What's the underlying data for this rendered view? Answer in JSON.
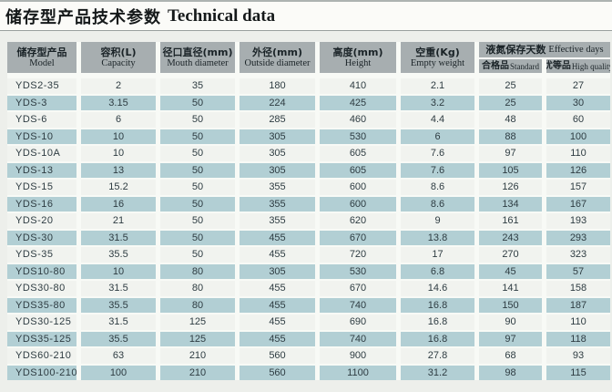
{
  "title": {
    "zh": "储存型产品技术参数",
    "en": "Technical data"
  },
  "table": {
    "columns": [
      {
        "zh": "储存型产品",
        "en": "Model"
      },
      {
        "zh": "容积(L)",
        "en": "Capacity"
      },
      {
        "zh": "径口直径(mm)",
        "en": "Mouth diameter"
      },
      {
        "zh": "外径(mm)",
        "en": "Outside diameter"
      },
      {
        "zh": "高度(mm)",
        "en": "Height"
      },
      {
        "zh": "空重(Kg)",
        "en": "Empty weight"
      }
    ],
    "group": {
      "zh": "液氮保存天数",
      "en": "Effective days",
      "sub": [
        {
          "zh": "合格品",
          "en": "Standard"
        },
        {
          "zh": "优等品",
          "en": "High quality"
        }
      ]
    },
    "rows": [
      [
        "YDS2-35",
        "2",
        "35",
        "180",
        "410",
        "2.1",
        "25",
        "27"
      ],
      [
        "YDS-3",
        "3.15",
        "50",
        "224",
        "425",
        "3.2",
        "25",
        "30"
      ],
      [
        "YDS-6",
        "6",
        "50",
        "285",
        "460",
        "4.4",
        "48",
        "60"
      ],
      [
        "YDS-10",
        "10",
        "50",
        "305",
        "530",
        "6",
        "88",
        "100"
      ],
      [
        "YDS-10A",
        "10",
        "50",
        "305",
        "605",
        "7.6",
        "97",
        "110"
      ],
      [
        "YDS-13",
        "13",
        "50",
        "305",
        "605",
        "7.6",
        "105",
        "126"
      ],
      [
        "YDS-15",
        "15.2",
        "50",
        "355",
        "600",
        "8.6",
        "126",
        "157"
      ],
      [
        "YDS-16",
        "16",
        "50",
        "355",
        "600",
        "8.6",
        "134",
        "167"
      ],
      [
        "YDS-20",
        "21",
        "50",
        "355",
        "620",
        "9",
        "161",
        "193"
      ],
      [
        "YDS-30",
        "31.5",
        "50",
        "455",
        "670",
        "13.8",
        "243",
        "293"
      ],
      [
        "YDS-35",
        "35.5",
        "50",
        "455",
        "720",
        "17",
        "270",
        "323"
      ],
      [
        "YDS10-80",
        "10",
        "80",
        "305",
        "530",
        "6.8",
        "45",
        "57"
      ],
      [
        "YDS30-80",
        "31.5",
        "80",
        "455",
        "670",
        "14.6",
        "141",
        "158"
      ],
      [
        "YDS35-80",
        "35.5",
        "80",
        "455",
        "740",
        "16.8",
        "150",
        "187"
      ],
      [
        "YDS30-125",
        "31.5",
        "125",
        "455",
        "690",
        "16.8",
        "90",
        "110"
      ],
      [
        "YDS35-125",
        "35.5",
        "125",
        "455",
        "740",
        "16.8",
        "97",
        "118"
      ],
      [
        "YDS60-210",
        "63",
        "210",
        "560",
        "900",
        "27.8",
        "68",
        "93"
      ],
      [
        "YDS100-210",
        "100",
        "210",
        "560",
        "1100",
        "31.2",
        "98",
        "115"
      ]
    ]
  },
  "colors": {
    "page_bg": "#edefeb",
    "title_bg": "#fbfbf8",
    "header_bg": "#a7aeb0",
    "row_teal": "#b2cfd4",
    "row_light": "#f1f3ef",
    "gutter": "#f8faf6",
    "text": "#2e3c42"
  }
}
